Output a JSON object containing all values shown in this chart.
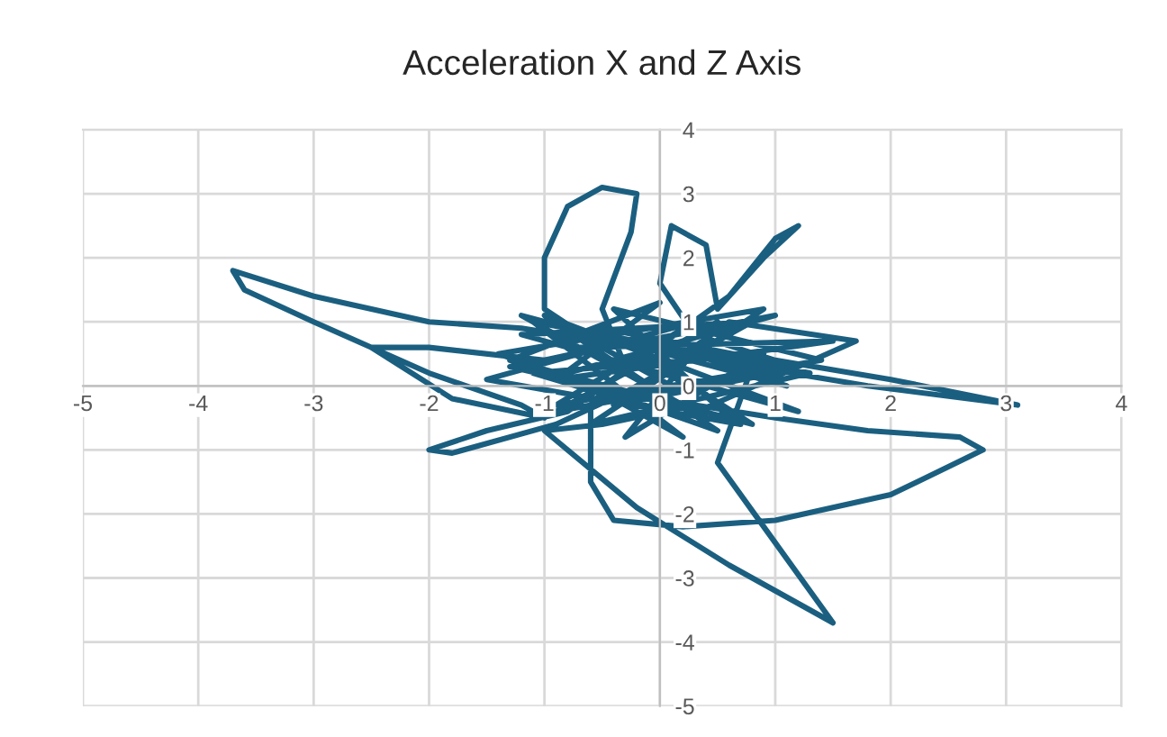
{
  "chart_data": {
    "type": "line",
    "title": "Acceleration X and Z Axis",
    "series": [
      {
        "color": "#1b5f80",
        "x": [
          0.2,
          -0.5,
          -1.2,
          -2.0,
          -3.0,
          -3.7,
          -3.6,
          -3.0,
          -2.0,
          -1.2,
          -1.0,
          -1.8,
          -2.5,
          -2.0,
          -1.0,
          -0.5,
          -1.0,
          -1.0,
          -0.8,
          -0.5,
          -0.2,
          -0.25,
          -0.5,
          -0.3,
          -0.6,
          -0.6,
          -0.4,
          0.2,
          1.0,
          2.0,
          2.8,
          2.6,
          1.8,
          1.0,
          0.3,
          -0.5,
          -1.0,
          -0.2,
          0.6,
          1.3,
          1.5,
          1.3,
          0.9,
          0.5,
          0.8,
          1.8,
          3.1,
          2.0,
          1.0,
          0.3,
          0.0,
          0.1,
          0.4,
          0.5,
          0.9,
          1.2,
          1.0,
          0.6,
          -0.8,
          -1.5,
          -2.0,
          -1.8,
          -0.9,
          -0.3,
          0.8,
          -1.2,
          1.2,
          -1.0,
          0.5,
          -1.4,
          0.9,
          -0.6,
          1.3,
          -1.1,
          0.2,
          -0.8,
          1.0,
          -1.3,
          0.6,
          -0.4,
          1.4,
          -0.9,
          0.3,
          -1.5,
          0.7,
          -0.2,
          1.1,
          -1.2,
          0.4,
          -0.7,
          1.5,
          -0.9,
          0.0,
          -1.3,
          0.8,
          -0.5,
          1.2,
          -0.9,
          0.5,
          -0.3,
          0.9,
          -1.1,
          0.2,
          1.7,
          0.6,
          -0.4,
          1.0,
          -0.8,
          0.3,
          0.0
        ],
        "values": [
          0.5,
          0.7,
          0.9,
          1.0,
          1.4,
          1.8,
          1.5,
          1.0,
          0.2,
          -0.3,
          -0.5,
          -0.2,
          0.6,
          0.6,
          0.4,
          0.6,
          1.2,
          2.0,
          2.8,
          3.1,
          3.0,
          2.4,
          1.2,
          0.3,
          -0.3,
          -1.5,
          -2.1,
          -2.2,
          -2.1,
          -1.7,
          -1.0,
          -0.8,
          -0.7,
          -0.5,
          -0.3,
          -0.6,
          -0.7,
          -1.9,
          -2.8,
          -3.5,
          -3.7,
          -3.2,
          -2.2,
          -1.2,
          0.3,
          0.0,
          -0.3,
          0.1,
          0.4,
          0.8,
          1.6,
          2.5,
          2.2,
          1.2,
          2.0,
          2.5,
          2.3,
          1.4,
          -0.4,
          -0.7,
          -1.0,
          -1.05,
          -0.6,
          -0.1,
          1.0,
          0.8,
          -0.4,
          1.1,
          -0.7,
          0.5,
          1.2,
          -0.6,
          0.2,
          1.0,
          -0.8,
          0.2,
          1.1,
          0.3,
          -0.5,
          1.2,
          0.4,
          -0.3,
          1.0,
          0.1,
          -0.6,
          0.8,
          0.0,
          1.1,
          -0.5,
          0.6,
          0.7,
          0.1,
          1.3,
          0.4,
          -0.6,
          0.9,
          0.3,
          -0.4,
          1.0,
          -0.8,
          0.5,
          0.2,
          -0.5,
          0.7,
          1.0,
          -0.3,
          0.2,
          0.9,
          -0.2,
          0.4
        ]
      }
    ],
    "xlim": [
      -5,
      4
    ],
    "xticks": [
      -5,
      -4,
      -3,
      -2,
      -1,
      0,
      1,
      2,
      3,
      4
    ],
    "ylim": [
      -5,
      4
    ],
    "yticks": [
      -5,
      -4,
      -3,
      -2,
      -1,
      0,
      1,
      2,
      3,
      4
    ],
    "grid": true
  }
}
